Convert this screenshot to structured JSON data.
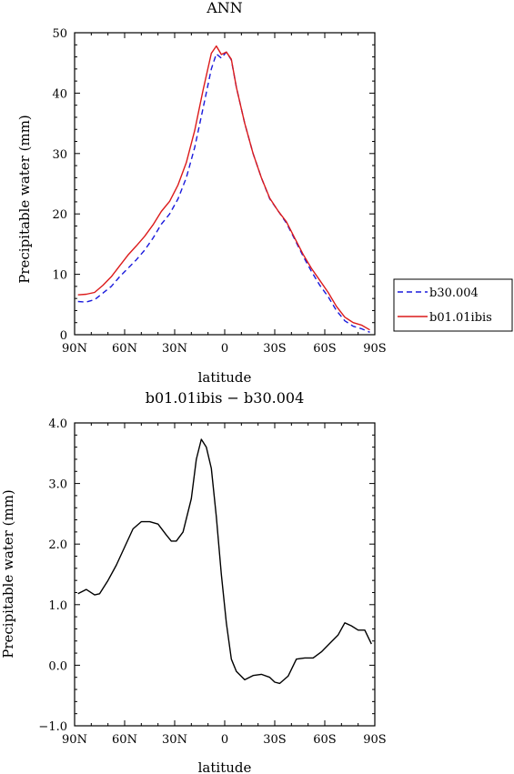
{
  "chart_data": [
    {
      "type": "line",
      "title": "ANN",
      "xlabel": "latitude",
      "ylabel": "Precipitable water (mm)",
      "xlim": [
        90,
        -90
      ],
      "ylim": [
        0,
        50
      ],
      "xticks": [
        90,
        60,
        30,
        0,
        -30,
        -60,
        -90
      ],
      "xtick_labels": [
        "90N",
        "60N",
        "30N",
        "0",
        "30S",
        "60S",
        "90S"
      ],
      "yticks": [
        0,
        10,
        20,
        30,
        40,
        50
      ],
      "ytick_labels": [
        "0",
        "10",
        "20",
        "30",
        "40",
        "50"
      ],
      "legend_position": "right",
      "series": [
        {
          "name": "b30.004",
          "color": "#1a1adc",
          "dash": "dashed",
          "x": [
            88,
            83,
            78,
            73,
            68,
            63,
            58,
            53,
            48,
            43,
            38,
            33,
            28,
            23,
            18,
            13,
            8,
            5,
            2,
            -1,
            -4,
            -7,
            -12,
            -17,
            -22,
            -27,
            -32,
            -37,
            -42,
            -47,
            -52,
            -57,
            -62,
            -67,
            -72,
            -77,
            -82,
            -87
          ],
          "values": [
            5.5,
            5.4,
            5.8,
            6.9,
            8.0,
            9.6,
            11.0,
            12.4,
            14.0,
            16.0,
            18.3,
            20.0,
            22.5,
            26.0,
            31.0,
            37.5,
            44.0,
            46.5,
            45.8,
            46.8,
            45.5,
            41.0,
            35.0,
            30.0,
            26.0,
            22.5,
            20.5,
            18.5,
            15.8,
            13.0,
            10.5,
            8.2,
            6.3,
            4.0,
            2.3,
            1.4,
            1.0,
            0.4
          ]
        },
        {
          "name": "b01.01ibis",
          "color": "#dc1a1a",
          "dash": "solid",
          "x": [
            88,
            83,
            78,
            73,
            68,
            63,
            58,
            53,
            48,
            43,
            38,
            33,
            28,
            23,
            18,
            13,
            8,
            5,
            2,
            -1,
            -4,
            -7,
            -12,
            -17,
            -22,
            -27,
            -32,
            -37,
            -42,
            -47,
            -52,
            -57,
            -62,
            -67,
            -72,
            -77,
            -82,
            -87
          ],
          "values": [
            6.6,
            6.7,
            7.0,
            8.2,
            9.6,
            11.4,
            13.2,
            14.7,
            16.3,
            18.2,
            20.4,
            22.1,
            24.8,
            28.5,
            33.8,
            40.5,
            46.6,
            47.8,
            46.4,
            46.8,
            45.6,
            41.0,
            35.0,
            30.0,
            26.0,
            22.6,
            20.5,
            18.7,
            16.0,
            13.3,
            11.0,
            9.0,
            7.0,
            4.7,
            2.9,
            2.0,
            1.6,
            0.8
          ]
        }
      ]
    },
    {
      "type": "line",
      "title": "b01.01ibis − b30.004",
      "xlabel": "latitude",
      "ylabel": "Precipitable water (mm)",
      "xlim": [
        90,
        -90
      ],
      "ylim": [
        -1,
        4
      ],
      "xticks": [
        90,
        60,
        30,
        0,
        -30,
        -60,
        -90
      ],
      "xtick_labels": [
        "90N",
        "60N",
        "30N",
        "0",
        "30S",
        "60S",
        "90S"
      ],
      "yticks": [
        -1,
        0,
        1,
        2,
        3,
        4
      ],
      "ytick_labels": [
        "−1.0",
        "0.0",
        "1.0",
        "2.0",
        "3.0",
        "4.0"
      ],
      "series": [
        {
          "color": "#000000",
          "dash": "solid",
          "x": [
            88,
            83,
            78,
            75,
            70,
            65,
            60,
            55,
            50,
            45,
            40,
            35,
            32,
            29,
            25,
            20,
            17,
            14,
            11,
            8,
            5,
            2,
            -1,
            -4,
            -7,
            -12,
            -17,
            -22,
            -27,
            -30,
            -33,
            -38,
            -43,
            -48,
            -53,
            -58,
            -63,
            -68,
            -72,
            -76,
            -80,
            -84,
            -88
          ],
          "values": [
            1.18,
            1.25,
            1.16,
            1.18,
            1.4,
            1.65,
            1.95,
            2.25,
            2.37,
            2.37,
            2.33,
            2.15,
            2.05,
            2.05,
            2.2,
            2.75,
            3.4,
            3.73,
            3.6,
            3.25,
            2.45,
            1.5,
            0.7,
            0.1,
            -0.1,
            -0.24,
            -0.17,
            -0.15,
            -0.2,
            -0.28,
            -0.3,
            -0.18,
            0.1,
            0.12,
            0.12,
            0.22,
            0.36,
            0.5,
            0.7,
            0.65,
            0.58,
            0.58,
            0.35
          ]
        }
      ]
    }
  ]
}
